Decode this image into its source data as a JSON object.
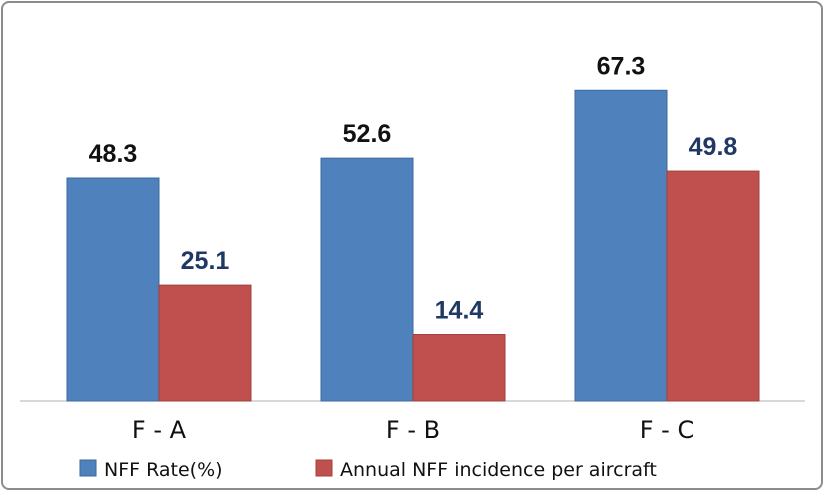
{
  "chart_data": {
    "type": "bar",
    "categories": [
      "F-A",
      "F-B",
      "F-C"
    ],
    "category_labels": [
      "F - A",
      "F - B",
      "F - C"
    ],
    "series": [
      {
        "name": "NFF Rate(%)",
        "values": [
          48.3,
          52.6,
          67.3
        ],
        "labels": [
          "48.3",
          "52.6",
          "67.3"
        ],
        "color": "#4F81BD",
        "label_color": "#111111"
      },
      {
        "name": "Annual NFF incidence per aircraft",
        "values": [
          25.1,
          14.4,
          49.8
        ],
        "labels": [
          "25.1",
          "14.4",
          "49.8"
        ],
        "color": "#C0504D",
        "label_color": "#1F3864"
      }
    ],
    "legend_position": "bottom",
    "grid": false,
    "ylim": [
      0,
      80
    ],
    "title": "",
    "xlabel": "",
    "ylabel": ""
  }
}
